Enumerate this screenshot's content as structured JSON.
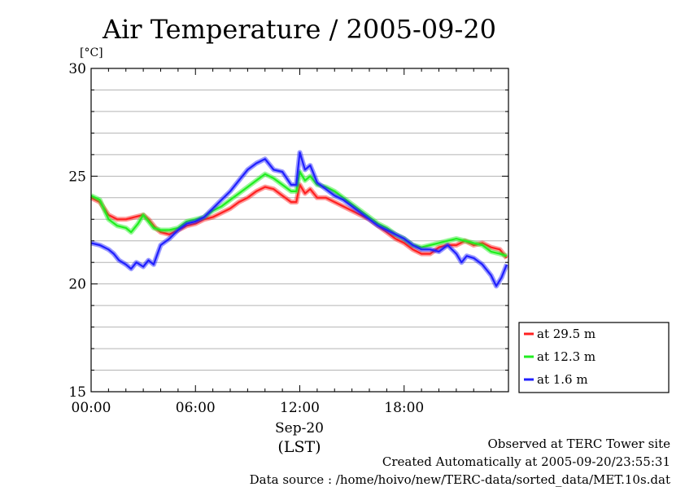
{
  "chart_data": {
    "type": "line",
    "title": "Air Temperature / 2005-09-20",
    "ylabel": "[°C]",
    "ylim": [
      15,
      30
    ],
    "yticks": [
      15,
      20,
      25,
      30
    ],
    "xlim": [
      0,
      24
    ],
    "xticks": [
      {
        "hour": 0,
        "label": "00:00"
      },
      {
        "hour": 6,
        "label": "06:00"
      },
      {
        "hour": 12,
        "label": "12:00"
      },
      {
        "hour": 18,
        "label": "18:00"
      }
    ],
    "date_label": "Sep-20",
    "tz_label": "(LST)",
    "grid": true,
    "legend_position": "right",
    "series": [
      {
        "name": "at 29.5 m",
        "color": "#ff2020",
        "points": [
          [
            0,
            24.0
          ],
          [
            0.5,
            23.8
          ],
          [
            1,
            23.2
          ],
          [
            1.5,
            23.0
          ],
          [
            2,
            23.0
          ],
          [
            2.5,
            23.1
          ],
          [
            3,
            23.2
          ],
          [
            3.3,
            23.0
          ],
          [
            3.7,
            22.6
          ],
          [
            4,
            22.4
          ],
          [
            4.5,
            22.3
          ],
          [
            5,
            22.5
          ],
          [
            5.5,
            22.7
          ],
          [
            6,
            22.8
          ],
          [
            6.5,
            23.0
          ],
          [
            7,
            23.1
          ],
          [
            7.5,
            23.3
          ],
          [
            8,
            23.5
          ],
          [
            8.5,
            23.8
          ],
          [
            9,
            24.0
          ],
          [
            9.5,
            24.3
          ],
          [
            10,
            24.5
          ],
          [
            10.5,
            24.4
          ],
          [
            11,
            24.1
          ],
          [
            11.5,
            23.8
          ],
          [
            11.8,
            23.8
          ],
          [
            12,
            24.6
          ],
          [
            12.3,
            24.2
          ],
          [
            12.6,
            24.4
          ],
          [
            13,
            24.0
          ],
          [
            13.5,
            24.0
          ],
          [
            14,
            23.8
          ],
          [
            14.5,
            23.6
          ],
          [
            15,
            23.4
          ],
          [
            15.5,
            23.2
          ],
          [
            16,
            23.0
          ],
          [
            16.5,
            22.7
          ],
          [
            17,
            22.4
          ],
          [
            17.5,
            22.1
          ],
          [
            18,
            21.9
          ],
          [
            18.5,
            21.6
          ],
          [
            19,
            21.4
          ],
          [
            19.5,
            21.4
          ],
          [
            20,
            21.7
          ],
          [
            20.5,
            21.8
          ],
          [
            21,
            21.8
          ],
          [
            21.5,
            22.0
          ],
          [
            22,
            21.8
          ],
          [
            22.5,
            21.9
          ],
          [
            23,
            21.7
          ],
          [
            23.5,
            21.6
          ],
          [
            23.9,
            21.2
          ]
        ]
      },
      {
        "name": "at 12.3 m",
        "color": "#20ee20",
        "points": [
          [
            0,
            24.1
          ],
          [
            0.5,
            23.9
          ],
          [
            1,
            23.0
          ],
          [
            1.5,
            22.7
          ],
          [
            2,
            22.6
          ],
          [
            2.3,
            22.4
          ],
          [
            2.7,
            22.8
          ],
          [
            3,
            23.2
          ],
          [
            3.3,
            22.9
          ],
          [
            3.6,
            22.6
          ],
          [
            4,
            22.5
          ],
          [
            4.5,
            22.5
          ],
          [
            5,
            22.6
          ],
          [
            5.5,
            22.9
          ],
          [
            6,
            23.0
          ],
          [
            6.5,
            23.1
          ],
          [
            7,
            23.4
          ],
          [
            7.5,
            23.6
          ],
          [
            8,
            23.9
          ],
          [
            8.5,
            24.2
          ],
          [
            9,
            24.5
          ],
          [
            9.5,
            24.8
          ],
          [
            10,
            25.1
          ],
          [
            10.5,
            24.9
          ],
          [
            11,
            24.6
          ],
          [
            11.5,
            24.3
          ],
          [
            11.8,
            24.3
          ],
          [
            12,
            25.2
          ],
          [
            12.3,
            24.8
          ],
          [
            12.6,
            25.0
          ],
          [
            13,
            24.6
          ],
          [
            13.5,
            24.5
          ],
          [
            14,
            24.3
          ],
          [
            14.5,
            24.0
          ],
          [
            15,
            23.7
          ],
          [
            15.5,
            23.4
          ],
          [
            16,
            23.1
          ],
          [
            16.5,
            22.8
          ],
          [
            17,
            22.6
          ],
          [
            17.5,
            22.3
          ],
          [
            18,
            22.1
          ],
          [
            18.5,
            21.8
          ],
          [
            19,
            21.7
          ],
          [
            19.5,
            21.8
          ],
          [
            20,
            21.9
          ],
          [
            20.5,
            22.0
          ],
          [
            21,
            22.1
          ],
          [
            21.5,
            22.0
          ],
          [
            22,
            21.9
          ],
          [
            22.5,
            21.8
          ],
          [
            23,
            21.5
          ],
          [
            23.5,
            21.4
          ],
          [
            23.9,
            21.3
          ]
        ]
      },
      {
        "name": "at 1.6 m",
        "color": "#2020ff",
        "points": [
          [
            0,
            21.9
          ],
          [
            0.5,
            21.8
          ],
          [
            1,
            21.6
          ],
          [
            1.3,
            21.4
          ],
          [
            1.6,
            21.1
          ],
          [
            2,
            20.9
          ],
          [
            2.3,
            20.7
          ],
          [
            2.6,
            21.0
          ],
          [
            3,
            20.8
          ],
          [
            3.3,
            21.1
          ],
          [
            3.6,
            20.9
          ],
          [
            4,
            21.8
          ],
          [
            4.5,
            22.1
          ],
          [
            5,
            22.5
          ],
          [
            5.5,
            22.8
          ],
          [
            6,
            22.9
          ],
          [
            6.5,
            23.1
          ],
          [
            7,
            23.5
          ],
          [
            7.5,
            23.9
          ],
          [
            8,
            24.3
          ],
          [
            8.5,
            24.8
          ],
          [
            9,
            25.3
          ],
          [
            9.5,
            25.6
          ],
          [
            10,
            25.8
          ],
          [
            10.5,
            25.3
          ],
          [
            11,
            25.2
          ],
          [
            11.5,
            24.6
          ],
          [
            11.8,
            24.6
          ],
          [
            12,
            26.1
          ],
          [
            12.3,
            25.3
          ],
          [
            12.6,
            25.5
          ],
          [
            13,
            24.7
          ],
          [
            13.5,
            24.4
          ],
          [
            14,
            24.1
          ],
          [
            14.5,
            23.9
          ],
          [
            15,
            23.6
          ],
          [
            15.5,
            23.3
          ],
          [
            16,
            23.0
          ],
          [
            16.5,
            22.7
          ],
          [
            17,
            22.5
          ],
          [
            17.5,
            22.3
          ],
          [
            18,
            22.1
          ],
          [
            18.5,
            21.8
          ],
          [
            19,
            21.6
          ],
          [
            19.5,
            21.6
          ],
          [
            20,
            21.5
          ],
          [
            20.5,
            21.8
          ],
          [
            21,
            21.4
          ],
          [
            21.3,
            21.0
          ],
          [
            21.6,
            21.3
          ],
          [
            22,
            21.2
          ],
          [
            22.5,
            20.9
          ],
          [
            23,
            20.4
          ],
          [
            23.3,
            19.9
          ],
          [
            23.6,
            20.3
          ],
          [
            23.9,
            20.9
          ]
        ]
      }
    ]
  },
  "footer": {
    "site": "Observed at TERC Tower site",
    "created": "Created Automatically at 2005-09-20/23:55:31",
    "source": "Data source : /home/hoivo/new/TERC-data/sorted_data/MET.10s.dat"
  }
}
